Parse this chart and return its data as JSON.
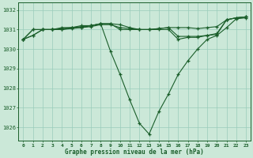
{
  "title": "Graphe pression niveau de la mer (hPa)",
  "background_color": "#cbe8d8",
  "plot_bg_color": "#cbe8d8",
  "grid_color": "#99ccbb",
  "line_color": "#1a5e2a",
  "xlim": [
    -0.5,
    23.5
  ],
  "ylim": [
    1025.3,
    1032.4
  ],
  "yticks": [
    1026,
    1027,
    1028,
    1029,
    1030,
    1031,
    1032
  ],
  "xticks": [
    0,
    1,
    2,
    3,
    4,
    5,
    6,
    7,
    8,
    9,
    10,
    11,
    12,
    13,
    14,
    15,
    16,
    17,
    18,
    19,
    20,
    21,
    22,
    23
  ],
  "series": [
    [
      1030.5,
      1030.7,
      1031.0,
      1031.0,
      1031.0,
      1031.05,
      1031.1,
      1031.15,
      1031.25,
      1031.25,
      1031.1,
      1031.05,
      1031.0,
      1031.0,
      1031.05,
      1031.1,
      1031.1,
      1031.1,
      1031.05,
      1031.1,
      1031.15,
      1031.5,
      1031.6,
      1031.65
    ],
    [
      1030.5,
      1030.7,
      1031.0,
      1031.0,
      1031.05,
      1031.1,
      1031.15,
      1031.2,
      1031.3,
      1031.3,
      1031.25,
      1031.1,
      1031.0,
      1031.0,
      1031.05,
      1031.1,
      1030.65,
      1030.65,
      1030.65,
      1030.7,
      1030.75,
      1031.5,
      1031.6,
      1031.65
    ],
    [
      1030.5,
      1031.0,
      1031.0,
      1031.0,
      1031.0,
      1031.1,
      1031.1,
      1031.2,
      1031.3,
      1029.9,
      1028.7,
      1027.4,
      1026.2,
      1025.65,
      1026.8,
      1027.7,
      1028.7,
      1029.4,
      1030.0,
      1030.5,
      1030.7,
      1031.1,
      1031.55,
      1031.6
    ],
    [
      1030.5,
      1031.0,
      1031.0,
      1031.0,
      1031.1,
      1031.1,
      1031.2,
      1031.2,
      1031.3,
      1031.3,
      1031.0,
      1031.0,
      1031.0,
      1031.0,
      1031.0,
      1031.0,
      1030.5,
      1030.6,
      1030.6,
      1030.7,
      1030.8,
      1031.5,
      1031.6,
      1031.65
    ]
  ]
}
